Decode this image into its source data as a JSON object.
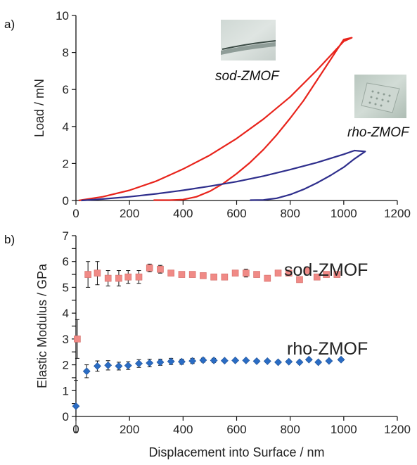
{
  "figure": {
    "panel_a_label": "a)",
    "panel_b_label": "b)"
  },
  "chart_data": [
    {
      "type": "line",
      "panel": "a",
      "title": "",
      "xlabel": "",
      "ylabel": "Load / mN",
      "xlim": [
        0,
        1200
      ],
      "ylim": [
        0,
        10
      ],
      "xticks": [
        0,
        200,
        400,
        600,
        800,
        1000,
        1200
      ],
      "yticks": [
        0,
        2,
        4,
        6,
        8,
        10
      ],
      "xtick_labels": [
        "0",
        "200",
        "400",
        "600",
        "800",
        "1000",
        "1200"
      ],
      "ytick_labels": [
        "0",
        "2",
        "4",
        "6",
        "8",
        "10"
      ],
      "grid": false,
      "annotations": [
        {
          "text": "sod-ZMOF",
          "style": "italic"
        },
        {
          "text": "rho-ZMOF",
          "style": "italic"
        }
      ],
      "series": [
        {
          "color": "#e8231b",
          "x": [
            10,
            100,
            200,
            300,
            400,
            500,
            600,
            700,
            800,
            900,
            1000,
            1030,
            1000,
            950,
            900,
            850,
            800,
            750,
            700,
            650,
            600,
            550,
            500,
            450,
            400,
            350,
            290
          ],
          "y": [
            0,
            0.2,
            0.55,
            1.05,
            1.7,
            2.45,
            3.35,
            4.4,
            5.6,
            7.05,
            8.6,
            8.8,
            8.7,
            7.6,
            6.5,
            5.4,
            4.45,
            3.55,
            2.75,
            2.05,
            1.45,
            0.92,
            0.5,
            0.2,
            0.05,
            0.02,
            0.02
          ]
        },
        {
          "color": "#2e2e8c",
          "x": [
            20,
            100,
            200,
            300,
            400,
            500,
            600,
            700,
            800,
            900,
            1000,
            1040,
            1080,
            1040,
            1000,
            950,
            900,
            850,
            800,
            750,
            700,
            650
          ],
          "y": [
            0,
            0.08,
            0.2,
            0.36,
            0.55,
            0.77,
            1.02,
            1.32,
            1.67,
            2.05,
            2.5,
            2.7,
            2.65,
            2.25,
            1.8,
            1.35,
            0.95,
            0.6,
            0.32,
            0.12,
            0.03,
            0.02
          ]
        }
      ]
    },
    {
      "type": "scatter",
      "panel": "b",
      "title": "",
      "xlabel": "Displacement into Surface / nm",
      "ylabel": "Elastic Modulus / GPa",
      "xlim": [
        0,
        1200
      ],
      "ylim": [
        0,
        7
      ],
      "xticks": [
        0,
        200,
        400,
        600,
        800,
        1000,
        1200
      ],
      "yticks": [
        0,
        0.5,
        1,
        1.5,
        2,
        2.5,
        3,
        3.5,
        4,
        4.5,
        5,
        5.5,
        6,
        6.5,
        7
      ],
      "xtick_labels": [
        "0",
        "200",
        "400",
        "600",
        "800",
        "1000",
        "1200"
      ],
      "ytick_labels": [
        "0",
        "1",
        "2",
        "3",
        "4",
        "5",
        "6",
        "7"
      ],
      "grid": false,
      "series": [
        {
          "name": "sod-ZMOF",
          "marker": "square",
          "color": "#f08a86",
          "x": [
            5,
            45,
            80,
            120,
            160,
            195,
            235,
            275,
            315,
            355,
            395,
            435,
            475,
            515,
            555,
            595,
            635,
            675,
            715,
            755,
            795,
            835,
            865,
            900,
            935,
            975
          ],
          "y": [
            3.0,
            5.5,
            5.55,
            5.35,
            5.35,
            5.4,
            5.4,
            5.75,
            5.7,
            5.55,
            5.5,
            5.5,
            5.45,
            5.4,
            5.4,
            5.55,
            5.55,
            5.5,
            5.35,
            5.55,
            5.55,
            5.3,
            5.65,
            5.4,
            5.5,
            5.5
          ],
          "err": [
            0.75,
            0.5,
            0.45,
            0.3,
            0.3,
            0.25,
            0.25,
            0.15,
            0.15,
            0.1,
            0.1,
            0.08,
            0.08,
            0.1,
            0.1,
            0.1,
            0.15,
            0.1,
            0.1,
            0.1,
            0.1,
            0.1,
            0.1,
            0.1,
            0.05,
            0.05
          ]
        },
        {
          "name": "rho-ZMOF",
          "marker": "diamond",
          "color": "#2a6cc4",
          "x": [
            0,
            40,
            80,
            120,
            160,
            195,
            235,
            275,
            315,
            355,
            395,
            435,
            475,
            515,
            555,
            595,
            635,
            675,
            715,
            755,
            795,
            835,
            870,
            905,
            945,
            990
          ],
          "y": [
            0.4,
            1.75,
            1.95,
            1.98,
            1.95,
            1.97,
            2.05,
            2.07,
            2.1,
            2.13,
            2.12,
            2.15,
            2.18,
            2.17,
            2.16,
            2.17,
            2.17,
            2.14,
            2.14,
            2.1,
            2.12,
            2.1,
            2.2,
            2.1,
            2.15,
            2.2
          ],
          "err": [
            1.0,
            0.25,
            0.2,
            0.18,
            0.15,
            0.15,
            0.15,
            0.15,
            0.12,
            0.12,
            0.1,
            0.1,
            0.08,
            0.08,
            0.05,
            0.05,
            0.05,
            0.05,
            0.05,
            0.05,
            0.05,
            0.05,
            0.05,
            0.05,
            0.05,
            0.05
          ]
        }
      ]
    }
  ]
}
